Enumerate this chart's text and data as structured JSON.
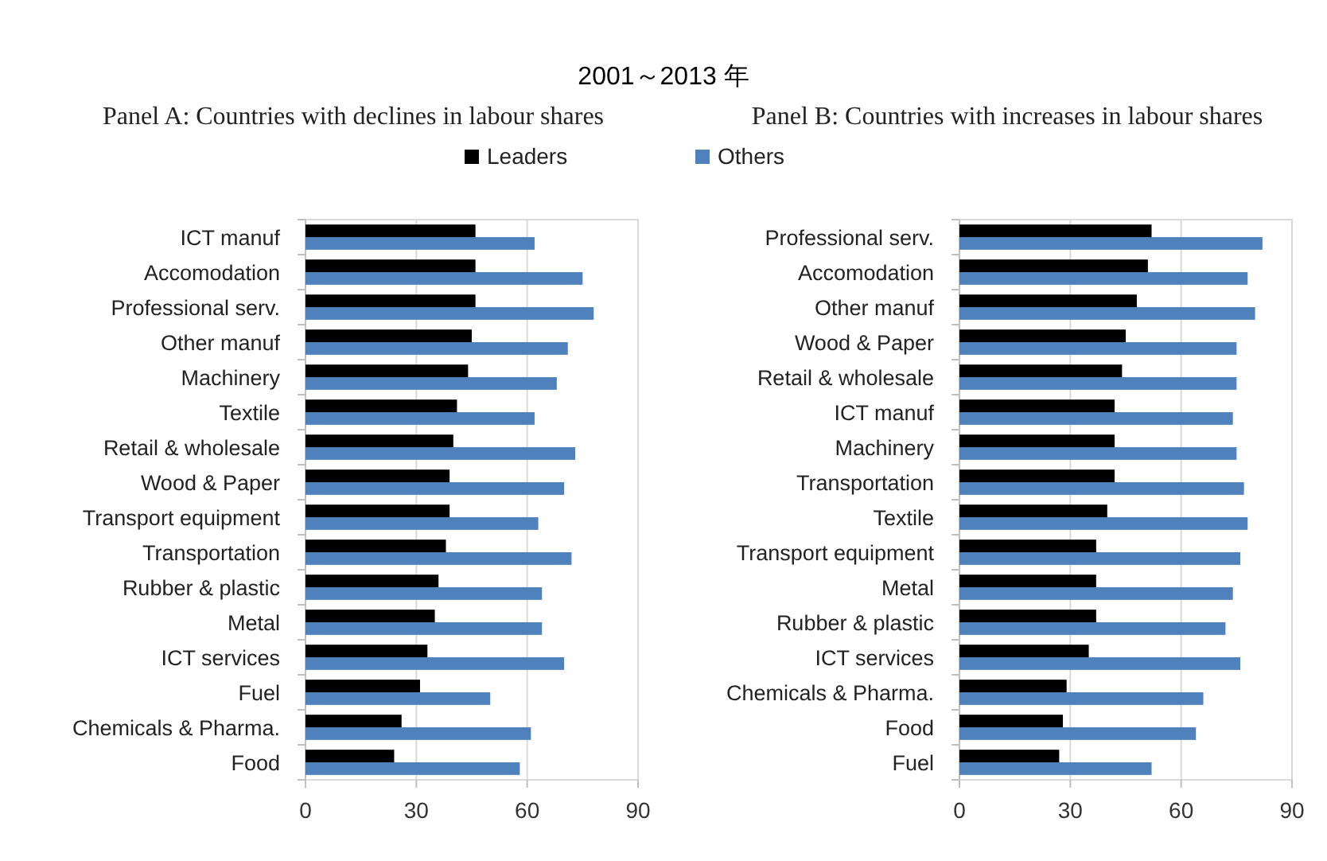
{
  "chart_data": [
    {
      "type": "bar",
      "orientation": "horizontal",
      "title": "2001～2013 年",
      "subtitle": "Panel A: Countries with declines in labour shares",
      "categories": [
        "ICT manuf",
        "Accomodation",
        "Professional serv.",
        "Other manuf",
        "Machinery",
        "Textile",
        "Retail & wholesale",
        "Wood & Paper",
        "Transport equipment",
        "Transportation",
        "Rubber & plastic",
        "Metal",
        "ICT services",
        "Fuel",
        "Chemicals & Pharma.",
        "Food"
      ],
      "series": [
        {
          "name": "Leaders",
          "color": "#000000",
          "values": [
            46,
            46,
            46,
            45,
            44,
            41,
            40,
            39,
            39,
            38,
            36,
            35,
            33,
            31,
            26,
            24
          ]
        },
        {
          "name": "Others",
          "color": "#4f81bd",
          "values": [
            62,
            75,
            78,
            71,
            68,
            62,
            73,
            70,
            63,
            72,
            64,
            64,
            70,
            50,
            61,
            58
          ]
        }
      ],
      "xlim": [
        0,
        90
      ],
      "xticks": [
        0,
        30,
        60,
        90
      ],
      "grid": "x",
      "legend": "top"
    },
    {
      "type": "bar",
      "orientation": "horizontal",
      "subtitle": "Panel B: Countries with increases in labour shares",
      "categories": [
        "Professional serv.",
        "Accomodation",
        "Other manuf",
        "Wood & Paper",
        "Retail & wholesale",
        "ICT manuf",
        "Machinery",
        "Transportation",
        "Textile",
        "Transport equipment",
        "Metal",
        "Rubber & plastic",
        "ICT services",
        "Chemicals & Pharma.",
        "Food",
        "Fuel"
      ],
      "series": [
        {
          "name": "Leaders",
          "color": "#000000",
          "values": [
            52,
            51,
            48,
            45,
            44,
            42,
            42,
            42,
            40,
            37,
            37,
            37,
            35,
            29,
            28,
            27
          ]
        },
        {
          "name": "Others",
          "color": "#4f81bd",
          "values": [
            82,
            78,
            80,
            75,
            75,
            74,
            75,
            77,
            78,
            76,
            74,
            72,
            76,
            66,
            64,
            52
          ]
        }
      ],
      "xlim": [
        0,
        90
      ],
      "xticks": [
        0,
        30,
        60,
        90
      ],
      "grid": "x",
      "legend": "top"
    }
  ]
}
